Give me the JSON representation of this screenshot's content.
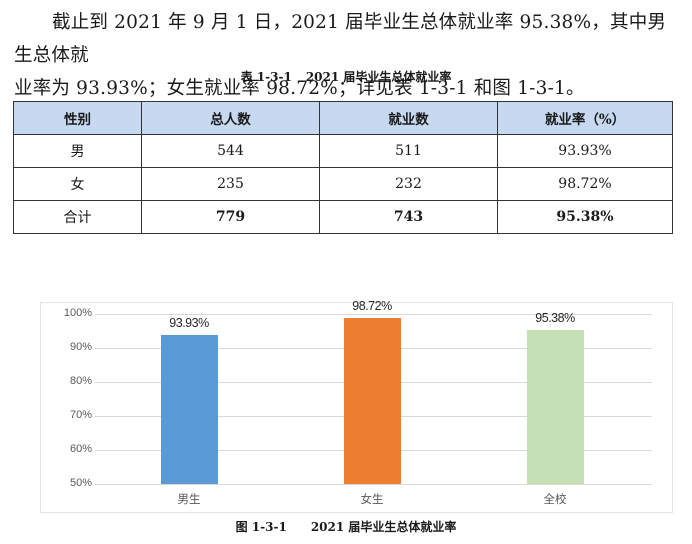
{
  "paragraph": {
    "line1": "截止到 2021 年 9 月 1 日，2021 届毕业生总体就业率 95.38%，其中男生总体就",
    "line2": "业率为 93.93%；女生就业率 98.72%；详见表 1-3-1 和图 1-3-1。"
  },
  "table": {
    "caption_number": "表 1-3-1",
    "caption_title": "2021 届毕业生总体就业率",
    "header_bg": "#c6d9f1",
    "columns": [
      "性别",
      "总人数",
      "就业数",
      "就业率（%）"
    ],
    "rows": [
      [
        "男",
        "544",
        "511",
        "93.93%"
      ],
      [
        "女",
        "235",
        "232",
        "98.72%"
      ],
      [
        "合计",
        "779",
        "743",
        "95.38%"
      ]
    ]
  },
  "figure": {
    "caption_number": "图 1-3-1",
    "caption_title": "2021 届毕业生总体就业率"
  },
  "chart_data": {
    "type": "bar",
    "title": "2021 届毕业生总体就业率",
    "categories": [
      "男生",
      "女生",
      "全校"
    ],
    "values": [
      93.93,
      98.72,
      95.38
    ],
    "value_labels": [
      "93.93%",
      "98.72%",
      "95.38%"
    ],
    "colors": [
      "#5b9bd5",
      "#ed7d31",
      "#c5e0b4"
    ],
    "xlabel": "",
    "ylabel": "",
    "ylim": [
      50,
      100
    ],
    "yticks": [
      "100%",
      "90%",
      "80%",
      "70%",
      "60%",
      "50%"
    ],
    "grid": true,
    "legend": null
  }
}
